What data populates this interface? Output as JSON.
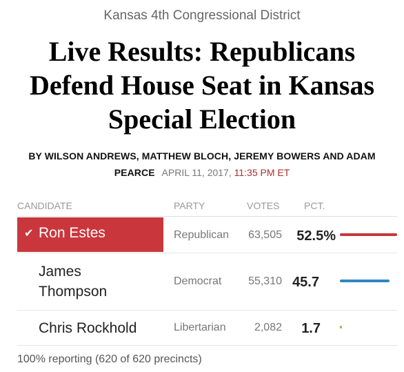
{
  "kicker": "Kansas 4th Congressional District",
  "headline": "Live Results: Republicans Defend House Seat in Kansas Special Election",
  "byline": {
    "authors": "BY WILSON ANDREWS, MATTHEW BLOCH, JEREMY BOWERS AND ADAM PEARCE",
    "date": "APRIL 11, 2017,",
    "time": "11:35 PM ET"
  },
  "table": {
    "headers": {
      "candidate": "CANDIDATE",
      "party": "PARTY",
      "votes": "VOTES",
      "pct": "PCT."
    },
    "rows": [
      {
        "candidate": "Ron Estes",
        "party": "Republican",
        "votes": "63,505",
        "pct": "52.5%",
        "share": 52.5,
        "winner": true,
        "color": "#c9373d"
      },
      {
        "candidate": "James Thompson",
        "party": "Democrat",
        "votes": "55,310",
        "pct": "45.7",
        "share": 45.7,
        "winner": false,
        "color": "#2f86c2"
      },
      {
        "candidate": "Chris Rockhold",
        "party": "Libertarian",
        "votes": "2,082",
        "pct": "1.7",
        "share": 1.7,
        "winner": false,
        "color": "#8bbd4c"
      }
    ]
  },
  "footer": "100% reporting (620 of 620 precincts)"
}
